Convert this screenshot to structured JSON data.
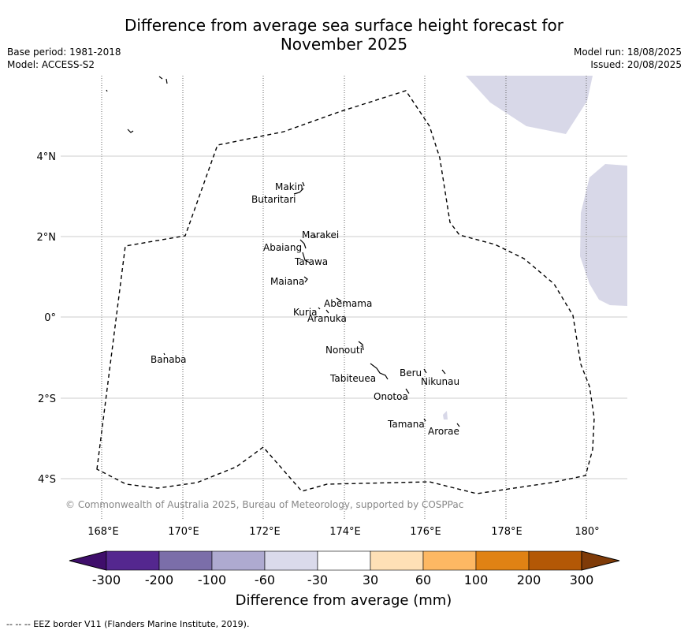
{
  "header": {
    "title_line1": "Difference from average sea surface height forecast for",
    "title_line2": "November 2025",
    "base_period": "Base period: 1981-2018",
    "model": "Model: ACCESS-S2",
    "model_run": "Model run: 18/08/2025",
    "issued": "Issued: 20/08/2025"
  },
  "map": {
    "lon_labels": [
      "168°E",
      "170°E",
      "172°E",
      "174°E",
      "176°E",
      "178°E",
      "180°"
    ],
    "lat_labels": [
      "4°N",
      "2°N",
      "0°",
      "2°S",
      "4°S"
    ],
    "copyright": "© Commonwealth of Australia 2025, Bureau of Meteorology, supported by COSPPac",
    "places": [
      {
        "name": "Makin"
      },
      {
        "name": "Butaritari"
      },
      {
        "name": "Marakei"
      },
      {
        "name": "Abaiang"
      },
      {
        "name": "Tarawa"
      },
      {
        "name": "Maiana"
      },
      {
        "name": "Abemama"
      },
      {
        "name": "Kuria"
      },
      {
        "name": "Aranuka"
      },
      {
        "name": "Nonouti"
      },
      {
        "name": "Banaba"
      },
      {
        "name": "Beru"
      },
      {
        "name": "Tabiteuea"
      },
      {
        "name": "Nikunau"
      },
      {
        "name": "Onotoa"
      },
      {
        "name": "Tamana"
      },
      {
        "name": "Arorae"
      }
    ],
    "anomaly_fill_color": "#d8d8e8"
  },
  "colorbar": {
    "tick_labels": [
      "-300",
      "-200",
      "-100",
      "-60",
      "-30",
      "30",
      "60",
      "100",
      "200",
      "300"
    ],
    "colors": [
      "#3f0e6b",
      "#54278f",
      "#7b6ea9",
      "#aeaad0",
      "#dadaeb",
      "#ffffff",
      "#fee0b6",
      "#fdb863",
      "#e08214",
      "#b35806",
      "#7f3b08"
    ],
    "label": "Difference from average (mm)"
  },
  "footnote": "--  --  -- EEZ border V11 (Flanders Marine Institute, 2019)."
}
